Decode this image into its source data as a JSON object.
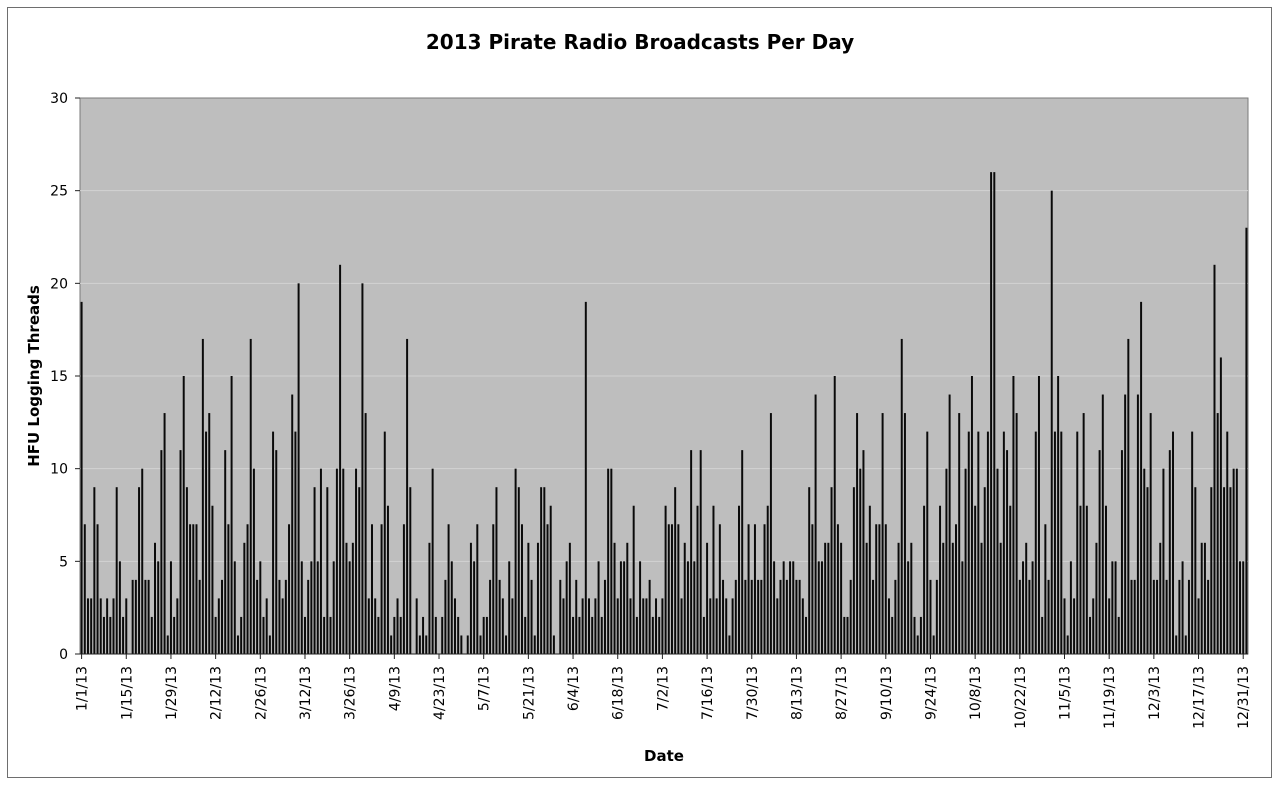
{
  "chart_data": {
    "type": "bar",
    "title": "2013 Pirate Radio Broadcasts Per Day",
    "xlabel": "Date",
    "ylabel": "HFU Logging Threads",
    "ylim": [
      0,
      30
    ],
    "yticks": [
      0,
      5,
      10,
      15,
      20,
      25,
      30
    ],
    "grid": true,
    "x_start": "1/1/13",
    "x_tick_labels": [
      "1/1/13",
      "1/15/13",
      "1/29/13",
      "2/12/13",
      "2/26/13",
      "3/12/13",
      "3/26/13",
      "4/9/13",
      "4/23/13",
      "5/7/13",
      "5/21/13",
      "6/4/13",
      "6/18/13",
      "7/2/13",
      "7/16/13",
      "7/30/13",
      "8/13/13",
      "8/27/13",
      "9/10/13",
      "9/24/13",
      "10/8/13",
      "10/22/13",
      "11/5/13",
      "11/19/13",
      "12/3/13",
      "12/17/13",
      "12/31/13"
    ],
    "colors": {
      "plot_bg": "#bebebe",
      "bar": "#0a0a0a",
      "grid": "#d2d2d2",
      "frame": "#6e6e6e"
    },
    "values": [
      19,
      7,
      3,
      3,
      9,
      7,
      3,
      2,
      3,
      2,
      3,
      9,
      5,
      2,
      3,
      0,
      4,
      4,
      9,
      10,
      4,
      4,
      2,
      6,
      5,
      11,
      13,
      1,
      5,
      2,
      3,
      11,
      15,
      9,
      7,
      7,
      7,
      4,
      17,
      12,
      13,
      8,
      2,
      3,
      4,
      11,
      7,
      15,
      5,
      1,
      2,
      6,
      7,
      17,
      10,
      4,
      5,
      2,
      3,
      1,
      12,
      11,
      4,
      3,
      4,
      7,
      14,
      12,
      20,
      5,
      2,
      4,
      5,
      9,
      5,
      10,
      2,
      9,
      2,
      5,
      10,
      21,
      10,
      6,
      5,
      6,
      10,
      9,
      20,
      13,
      3,
      7,
      3,
      2,
      7,
      12,
      8,
      1,
      2,
      3,
      2,
      7,
      17,
      9,
      0,
      3,
      1,
      2,
      1,
      6,
      10,
      2,
      0,
      2,
      4,
      7,
      5,
      3,
      2,
      1,
      0,
      1,
      6,
      5,
      7,
      1,
      2,
      2,
      4,
      7,
      9,
      4,
      3,
      1,
      5,
      3,
      10,
      9,
      7,
      2,
      6,
      4,
      1,
      6,
      9,
      9,
      7,
      8,
      1,
      0,
      4,
      3,
      5,
      6,
      2,
      4,
      2,
      3,
      19,
      3,
      2,
      3,
      5,
      2,
      4,
      10,
      10,
      6,
      3,
      5,
      5,
      6,
      3,
      8,
      2,
      5,
      3,
      3,
      4,
      2,
      3,
      2,
      3,
      8,
      7,
      7,
      9,
      7,
      3,
      6,
      5,
      11,
      5,
      8,
      11,
      2,
      6,
      3,
      8,
      3,
      7,
      4,
      3,
      1,
      3,
      4,
      8,
      11,
      4,
      7,
      4,
      7,
      4,
      4,
      7,
      8,
      13,
      5,
      3,
      4,
      5,
      4,
      5,
      5,
      4,
      4,
      3,
      2,
      9,
      7,
      14,
      5,
      5,
      6,
      6,
      9,
      15,
      7,
      6,
      2,
      2,
      4,
      9,
      13,
      10,
      11,
      6,
      8,
      4,
      7,
      7,
      13,
      7,
      3,
      2,
      4,
      6,
      17,
      13,
      5,
      6,
      2,
      1,
      2,
      8,
      12,
      4,
      1,
      4,
      8,
      6,
      10,
      14,
      6,
      7,
      13,
      5,
      10,
      12,
      15,
      8,
      12,
      6,
      9,
      12,
      26,
      26,
      10,
      6,
      12,
      11,
      8,
      15,
      13,
      4,
      5,
      6,
      4,
      5,
      12,
      15,
      2,
      7,
      4,
      25,
      12,
      15,
      12,
      3,
      1,
      5,
      3,
      12,
      8,
      13,
      8,
      2,
      3,
      6,
      11,
      14,
      8,
      3,
      5,
      5,
      2,
      11,
      14,
      17,
      4,
      4,
      14,
      19,
      10,
      9,
      13,
      4,
      4,
      6,
      10,
      4,
      11,
      12,
      1,
      4,
      5,
      1,
      4,
      12,
      9,
      3,
      6,
      6,
      4,
      9,
      21,
      13,
      16,
      9,
      12,
      9,
      10,
      10,
      5,
      5,
      23
    ]
  }
}
